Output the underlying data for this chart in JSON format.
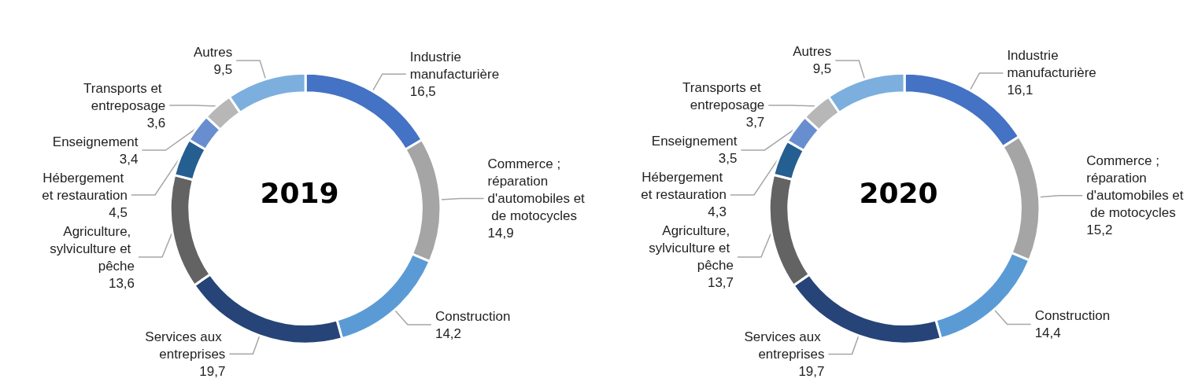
{
  "chart_data": [
    {
      "type": "donut",
      "title": "2019",
      "categories": [
        "Industrie manufacturière",
        "Commerce ; réparation d'automobiles et de motocycles",
        "Construction",
        "Services aux entreprises",
        "Agriculture, sylviculture et pêche",
        "Hébergement et restauration",
        "Enseignement",
        "Transports et entreposage",
        "Autres"
      ],
      "values": [
        16.5,
        14.9,
        14.2,
        19.7,
        13.6,
        4.5,
        3.4,
        3.6,
        9.5
      ],
      "value_labels": [
        "16,5",
        "14,9",
        "14,2",
        "19,7",
        "13,6",
        "4,5",
        "3,4",
        "3,6",
        "9,5"
      ],
      "colors": [
        "#4472c4",
        "#a5a5a5",
        "#5b9bd5",
        "#264478",
        "#636363",
        "#255e91",
        "#698ed0",
        "#b7b7b7",
        "#7cafdd"
      ]
    },
    {
      "type": "donut",
      "title": "2020",
      "categories": [
        "Industrie manufacturière",
        "Commerce ; réparation d'automobiles et de motocycles",
        "Construction",
        "Services aux entreprises",
        "Agriculture, sylviculture et pêche",
        "Hébergement et restauration",
        "Enseignement",
        "Transports et entreposage",
        "Autres"
      ],
      "values": [
        16.1,
        15.2,
        14.4,
        19.7,
        13.7,
        4.3,
        3.5,
        3.7,
        9.5
      ],
      "value_labels": [
        "16,1",
        "15,2",
        "14,4",
        "19,7",
        "13,7",
        "4,3",
        "3,5",
        "3,7",
        "9,5"
      ],
      "colors": [
        "#4472c4",
        "#a5a5a5",
        "#5b9bd5",
        "#264478",
        "#636363",
        "#255e91",
        "#698ed0",
        "#b7b7b7",
        "#7cafdd"
      ]
    }
  ]
}
